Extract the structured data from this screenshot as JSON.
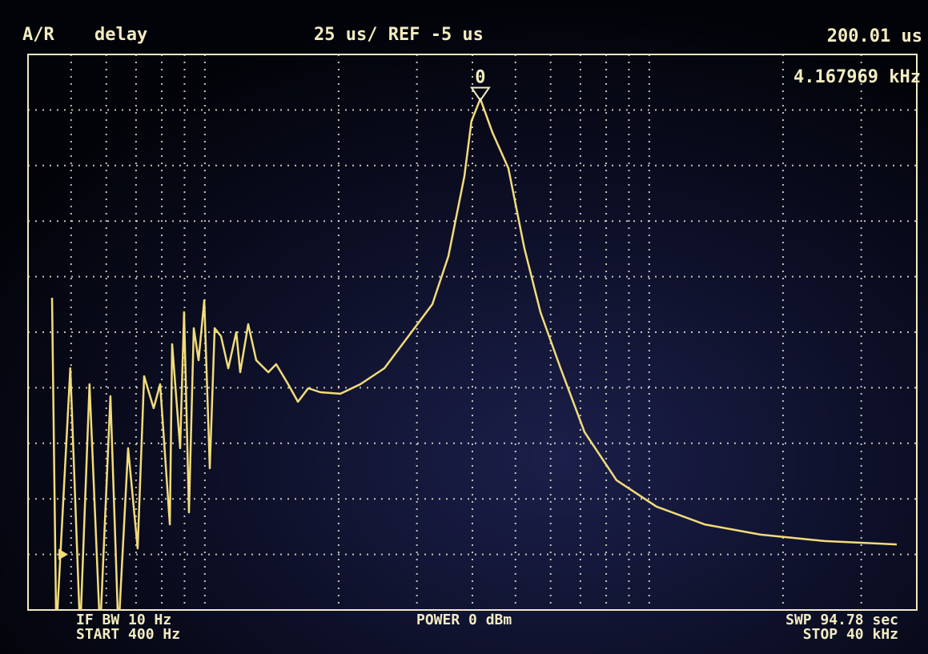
{
  "chart_data": {
    "type": "line",
    "channel": "A/R",
    "format": "delay",
    "scale_label": "25 us/ REF -5 us",
    "ref_level": -5,
    "log_x": true,
    "grid": true,
    "xlim": [
      400,
      40000
    ],
    "ylim": [
      -30,
      220
    ],
    "color": "#f2dc7a",
    "marker": {
      "label": "0",
      "x": 4167.969,
      "value": 200.01,
      "x_label": "4.167969 kHz",
      "value_label": "200.01 us"
    },
    "footer": {
      "if_bw": "IF BW 10 Hz",
      "start": "START 400 Hz",
      "power": "POWER 0 dBm",
      "sweep": "SWP 94.78 sec",
      "stop": "STOP 40 kHz"
    },
    "x": [
      453,
      463,
      498,
      524,
      550,
      581,
      613,
      639,
      672,
      706,
      730,
      767,
      793,
      834,
      844,
      880,
      898,
      921,
      944,
      968,
      997,
      1026,
      1052,
      1087,
      1129,
      1177,
      1201,
      1252,
      1305,
      1389,
      1447,
      1540,
      1620,
      1709,
      1819,
      2018,
      2238,
      2535,
      2871,
      3251,
      3532,
      3838,
      3980,
      4167.969,
      4436,
      4820,
      5236,
      5691,
      6315,
      7152,
      8441,
      10386,
      13325,
      17813,
      24824,
      36065
    ],
    "values": [
      110.5,
      -40,
      78.8,
      -40,
      71.6,
      -40,
      66.2,
      -40,
      42.8,
      -2.3,
      75.2,
      60.8,
      71.6,
      8.5,
      89.6,
      42.8,
      104.0,
      13.9,
      96.8,
      82.4,
      109.4,
      33.8,
      96.8,
      93.2,
      78.8,
      95.0,
      77.0,
      98.6,
      82.4,
      77.0,
      80.6,
      71.6,
      63.7,
      69.8,
      68.0,
      67.3,
      71.6,
      78.8,
      93.2,
      107.6,
      129.2,
      165.2,
      190.0,
      200.01,
      185.0,
      168.8,
      132.8,
      104.0,
      78.8,
      50.0,
      28.4,
      16.5,
      8.5,
      3.9,
      1.0,
      -0.5
    ]
  }
}
